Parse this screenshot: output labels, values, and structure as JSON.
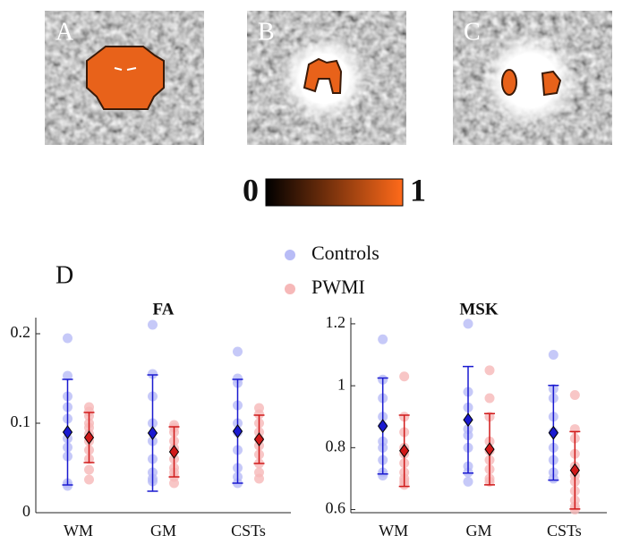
{
  "panels": {
    "labels": [
      "A",
      "B",
      "C",
      "D"
    ]
  },
  "colorbar": {
    "ticks": [
      0,
      1
    ],
    "colors": [
      "#000000",
      "#ff6a1a"
    ]
  },
  "chart_data": [
    {
      "type": "dot_errorbar",
      "title": "FA",
      "categories": [
        "WM",
        "GM",
        "CSTs"
      ],
      "ylim": [
        0,
        0.218
      ],
      "yticks": [
        0,
        0.1,
        0.2
      ],
      "series": [
        {
          "name": "Controls",
          "color": "#1a1ad0",
          "point_color": "#b8bcf6",
          "points": [
            [
              0.195,
              0.153,
              0.13,
              0.118,
              0.105,
              0.083,
              0.073,
              0.063,
              0.033,
              0.03
            ],
            [
              0.21,
              0.155,
              0.13,
              0.1,
              0.08,
              0.06,
              0.045,
              0.038,
              0.035
            ],
            [
              0.18,
              0.15,
              0.145,
              0.12,
              0.1,
              0.09,
              0.07,
              0.05,
              0.04,
              0.033
            ]
          ],
          "means": [
            0.09,
            0.089,
            0.091
          ],
          "errors": [
            0.059,
            0.065,
            0.058
          ]
        },
        {
          "name": "PWMI",
          "color": "#d01a1a",
          "point_color": "#f6b8b8",
          "points": [
            [
              0.118,
              0.113,
              0.108,
              0.1,
              0.095,
              0.088,
              0.08,
              0.07,
              0.06,
              0.048,
              0.037
            ],
            [
              0.098,
              0.095,
              0.09,
              0.08,
              0.072,
              0.06,
              0.05,
              0.045,
              0.04,
              0.033
            ],
            [
              0.117,
              0.11,
              0.1,
              0.09,
              0.082,
              0.075,
              0.065,
              0.055,
              0.045,
              0.038
            ]
          ],
          "means": [
            0.084,
            0.068,
            0.082
          ],
          "errors": [
            0.028,
            0.028,
            0.027
          ]
        }
      ]
    },
    {
      "type": "dot_errorbar",
      "title": "MSK",
      "categories": [
        "WM",
        "GM",
        "CSTs"
      ],
      "ylim": [
        0.59,
        1.22
      ],
      "yticks": [
        0.6,
        0.8,
        1,
        1.2
      ],
      "series": [
        {
          "color": "#1a1ad0",
          "point_color": "#b8bcf6",
          "points": [
            [
              1.15,
              1.02,
              0.96,
              0.9,
              0.87,
              0.82,
              0.8,
              0.76,
              0.72,
              0.71
            ],
            [
              1.2,
              0.98,
              0.93,
              0.86,
              0.84,
              0.8,
              0.74,
              0.72,
              0.69
            ],
            [
              1.1,
              0.99,
              0.96,
              0.9,
              0.85,
              0.8,
              0.76,
              0.72,
              0.7
            ]
          ],
          "means": [
            0.87,
            0.89,
            0.848
          ],
          "errors": [
            0.155,
            0.172,
            0.153
          ]
        },
        {
          "color": "#d01a1a",
          "point_color": "#f6b8b8",
          "points": [
            [
              1.03,
              0.9,
              0.85,
              0.8,
              0.78,
              0.75,
              0.72,
              0.7,
              0.69,
              0.68
            ],
            [
              1.05,
              0.96,
              0.9,
              0.82,
              0.79,
              0.76,
              0.73,
              0.7,
              0.69
            ],
            [
              0.97,
              0.86,
              0.83,
              0.78,
              0.74,
              0.71,
              0.69,
              0.66,
              0.63,
              0.61,
              0.6
            ]
          ],
          "means": [
            0.79,
            0.795,
            0.727
          ],
          "errors": [
            0.115,
            0.115,
            0.125
          ]
        }
      ]
    }
  ]
}
